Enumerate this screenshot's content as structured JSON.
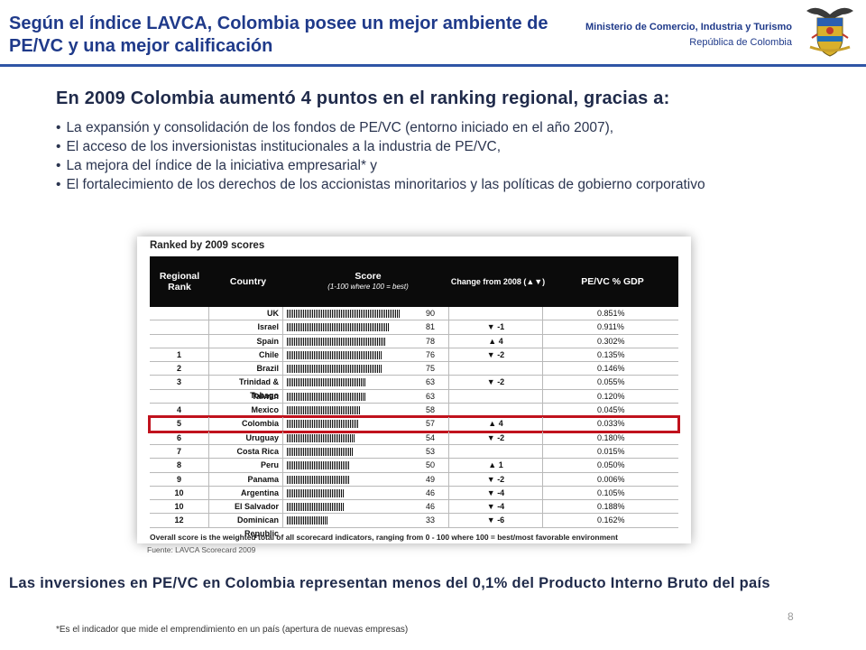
{
  "header": {
    "title": "Según el índice LAVCA, Colombia posee un mejor ambiente de PE/VC y una mejor calificación",
    "ministry_line1": "Ministerio de Comercio, Industria y Turismo",
    "ministry_line2": "República de Colombia",
    "emblem_icon": "colombia-coat-of-arms-icon"
  },
  "subtitle": "En 2009 Colombia aumentó 4 puntos en el ranking regional, gracias a:",
  "bullets": [
    "La expansión y consolidación de los fondos de PE/VC (entorno iniciado en el año 2007),",
    "El acceso de los inversionistas institucionales a la industria de PE/VC,",
    "La mejora del índice de la iniciativa empresarial* y",
    "El fortalecimiento de los derechos de los accionistas minoritarios y las políticas de gobierno corporativo"
  ],
  "table": {
    "title": "Ranked by 2009 scores",
    "headers": {
      "rank": "Regional Rank",
      "country": "Country",
      "score": "Score",
      "score_sub": "(1-100 where 100 = best)",
      "change": "Change from 2008 (▲▼)",
      "gdp": "PE/VC % GDP"
    },
    "rows": [
      {
        "rank": "",
        "country": "UK",
        "score": 90,
        "change": "",
        "gdp": "0.851%"
      },
      {
        "rank": "",
        "country": "Israel",
        "score": 81,
        "change": "▼ -1",
        "gdp": "0.911%"
      },
      {
        "rank": "",
        "country": "Spain",
        "score": 78,
        "change": "▲ 4",
        "gdp": "0.302%"
      },
      {
        "rank": "1",
        "country": "Chile",
        "score": 76,
        "change": "▼ -2",
        "gdp": "0.135%"
      },
      {
        "rank": "2",
        "country": "Brazil",
        "score": 75,
        "change": "",
        "gdp": "0.146%"
      },
      {
        "rank": "3",
        "country": "Trinidad & Tobago",
        "score": 63,
        "change": "▼ -2",
        "gdp": "0.055%"
      },
      {
        "rank": "",
        "country": "Taiwan",
        "score": 63,
        "change": "",
        "gdp": "0.120%"
      },
      {
        "rank": "4",
        "country": "Mexico",
        "score": 58,
        "change": "",
        "gdp": "0.045%"
      },
      {
        "rank": "5",
        "country": "Colombia",
        "score": 57,
        "change": "▲ 4",
        "gdp": "0.033%",
        "highlight": true
      },
      {
        "rank": "6",
        "country": "Uruguay",
        "score": 54,
        "change": "▼ -2",
        "gdp": "0.180%"
      },
      {
        "rank": "7",
        "country": "Costa Rica",
        "score": 53,
        "change": "",
        "gdp": "0.015%"
      },
      {
        "rank": "8",
        "country": "Peru",
        "score": 50,
        "change": "▲ 1",
        "gdp": "0.050%"
      },
      {
        "rank": "9",
        "country": "Panama",
        "score": 49,
        "change": "▼ -2",
        "gdp": "0.006%"
      },
      {
        "rank": "10",
        "country": "Argentina",
        "score": 46,
        "change": "▼ -4",
        "gdp": "0.105%"
      },
      {
        "rank": "10",
        "country": "El Salvador",
        "score": 46,
        "change": "▼ -4",
        "gdp": "0.188%"
      },
      {
        "rank": "12",
        "country": "Dominican Republic",
        "score": 33,
        "change": "▼ -6",
        "gdp": "0.162%"
      }
    ],
    "footnote": "Overall score is the weighted total of all scorecard indicators, ranging from 0 - 100 where 100 = best/most favorable environment",
    "highlight_color": "#c0121d"
  },
  "source": "Fuente: LAVCA Scorecard 2009",
  "conclusion": "Las inversiones en PE/VC en Colombia representan menos del 0,1% del Producto Interno Bruto del país",
  "note": "*Es el indicador que mide el emprendimiento en un país (apertura de nuevas empresas)",
  "page_number": "8"
}
